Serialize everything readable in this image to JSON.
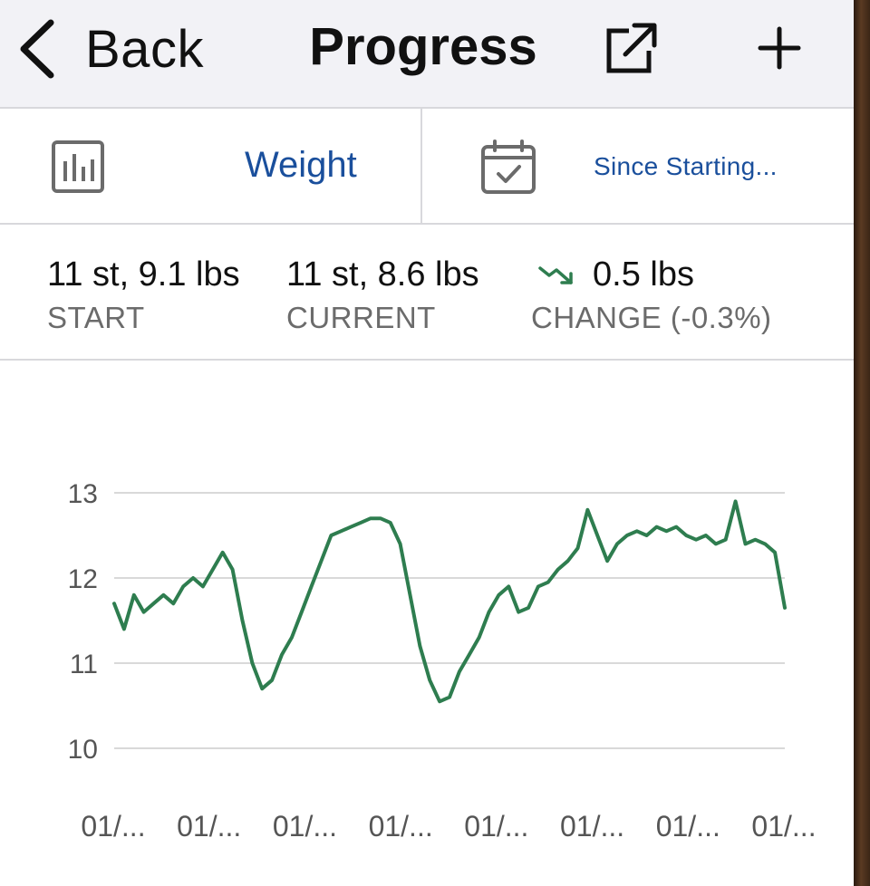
{
  "nav": {
    "back_label": "Back",
    "title": "Progress"
  },
  "icons": {
    "back": "chevron-left-icon",
    "share": "share-icon",
    "add": "plus-icon",
    "chart": "bar-chart-icon",
    "calendar": "calendar-check-icon",
    "trend": "trend-down-icon"
  },
  "filters": {
    "metric": "Weight",
    "range": "Since Starting..."
  },
  "stats": {
    "start": {
      "value": "11 st, 9.1 lbs",
      "label": "START"
    },
    "current": {
      "value": "11 st, 8.6 lbs",
      "label": "CURRENT"
    },
    "change": {
      "value": "0.5 lbs",
      "label": "CHANGE (-0.3%)"
    }
  },
  "colors": {
    "accent": "#1a4f9c",
    "line": "#2e7d4f",
    "grid": "#d9d9d9"
  },
  "chart_data": {
    "type": "line",
    "ylim": [
      10,
      13
    ],
    "yticks": [
      10,
      11,
      12,
      13
    ],
    "xticks": [
      "01/...",
      "01/...",
      "01/...",
      "01/...",
      "01/...",
      "01/...",
      "01/...",
      "01/..."
    ],
    "series": [
      {
        "values": [
          11.7,
          11.4,
          11.8,
          11.6,
          11.7,
          11.8,
          11.7,
          11.9,
          12.0,
          11.9,
          12.1,
          12.3,
          12.1,
          11.5,
          11.0,
          10.7,
          10.8,
          11.1,
          11.3,
          11.6,
          11.9,
          12.2,
          12.5,
          12.55,
          12.6,
          12.65,
          12.7,
          12.7,
          12.65,
          12.4,
          11.8,
          11.2,
          10.8,
          10.55,
          10.6,
          10.9,
          11.1,
          11.3,
          11.6,
          11.8,
          11.9,
          11.6,
          11.65,
          11.9,
          11.95,
          12.1,
          12.2,
          12.35,
          12.8,
          12.5,
          12.2,
          12.4,
          12.5,
          12.55,
          12.5,
          12.6,
          12.55,
          12.6,
          12.5,
          12.45,
          12.5,
          12.4,
          12.45,
          12.9,
          12.4,
          12.45,
          12.4,
          12.3,
          11.65
        ]
      }
    ]
  }
}
